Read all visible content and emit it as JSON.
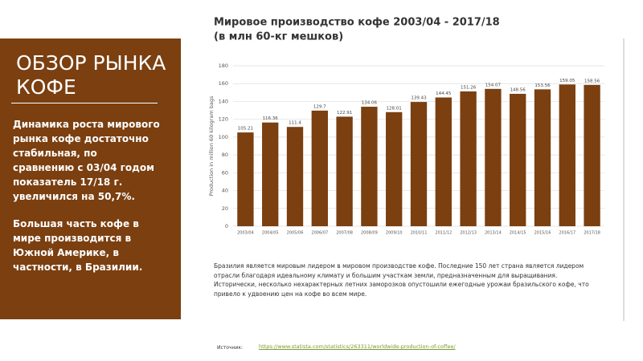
{
  "panel": {
    "heading": [
      "ОБЗОР РЫНКА",
      "КОФЕ"
    ],
    "paragraphs": [
      "Динамика роста мирового рынка кофе достаточно стабильная, по сравнению с 03/04 годом показатель 17/18 г. увеличился на 50,7%.",
      "Большая часть кофе в мире производится в Южной Америке, в частности, в Бразилии."
    ]
  },
  "chart_data": {
    "type": "bar",
    "title": "Мировое производство кофе 2003/04 - 2017/18",
    "subtitle": "(в млн 60-кг мешков)",
    "y_label": "Production in million 60 kilogram bags",
    "categories": [
      "2003/04",
      "2004/05",
      "2005/06",
      "2006/07",
      "2007/08",
      "2008/09",
      "2009/10",
      "2010/11",
      "2011/12",
      "2012/13",
      "2013/14",
      "2014/15",
      "2015/16",
      "2016/17",
      "2017/18"
    ],
    "values": [
      105.21,
      116.36,
      111.4,
      129.7,
      122.91,
      134.06,
      128.01,
      139.43,
      144.45,
      151.26,
      154.07,
      148.56,
      153.56,
      159.05,
      158.56
    ],
    "color": "#7b3f10",
    "ylim": [
      0,
      180
    ],
    "yticks": [
      0,
      20,
      40,
      60,
      80,
      100,
      120,
      140,
      160,
      180
    ],
    "grid": true
  },
  "caption": "Бразилия является мировым лидером в мировом производстве кофе. Последние 150 лет страна является лидером отрасли благодаря идеальному климату и большим участкам земли, предназначенным для выращивания. Исторически, несколько нехарактерных летних заморозков опустошили ежегодные урожаи бразильского кофе, что привело к удвоению цен на кофе во всем мире.",
  "source": {
    "label": "Источник:",
    "url": "https://www.statista.com/statistics/263311/worldwide-production-of-coffee/"
  }
}
